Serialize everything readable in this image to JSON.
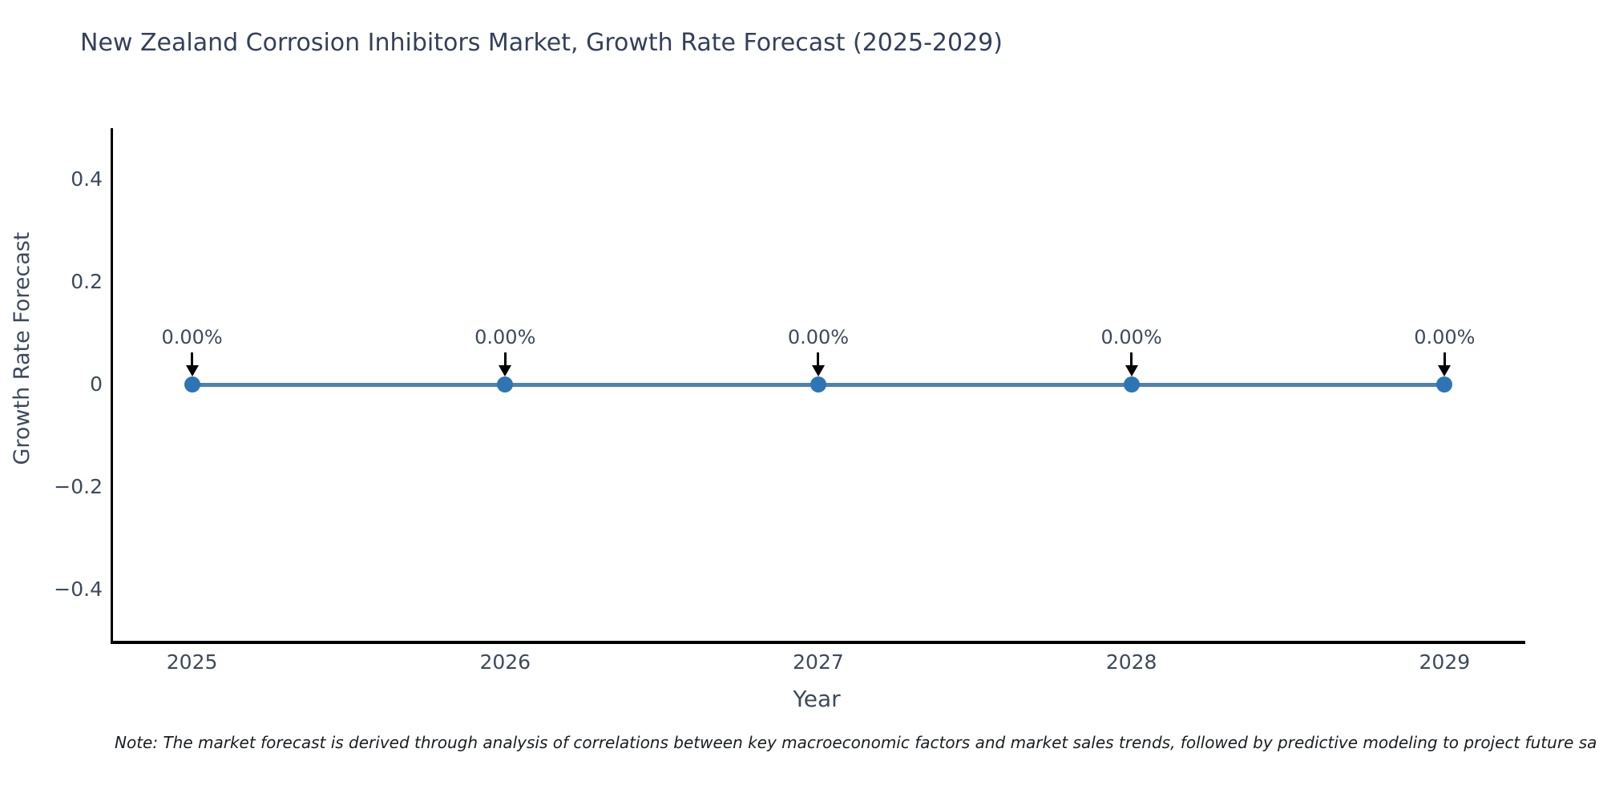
{
  "note": "Note: The market forecast is derived through analysis of correlations between key macroeconomic factors and market sales trends, followed by predictive modeling to project future sa",
  "colors": {
    "title": "#34405a",
    "text": "#3d4a5c",
    "note": "#1a1d21",
    "background": "#ffffff",
    "axis": "#000000"
  },
  "chart_data": {
    "type": "line",
    "title": "New Zealand Corrosion Inhibitors Market, Growth Rate Forecast (2025-2029)",
    "xlabel": "Year",
    "ylabel": "Growth Rate Forecast",
    "x": [
      2025,
      2026,
      2027,
      2028,
      2029
    ],
    "values": [
      0,
      0,
      0,
      0,
      0
    ],
    "point_labels": [
      "0.00%",
      "0.00%",
      "0.00%",
      "0.00%",
      "0.00%"
    ],
    "xtick_labels": [
      "2025",
      "2026",
      "2027",
      "2028",
      "2029"
    ],
    "yticks": [
      0.4,
      0.2,
      0,
      -0.2,
      -0.4
    ],
    "ytick_labels": [
      "0.4",
      "0.2",
      "0",
      "−0.2",
      "−0.4"
    ],
    "xlim": [
      2024.74,
      2029.25
    ],
    "ylim": [
      -0.5,
      0.5
    ],
    "grid": false,
    "legend": "none",
    "line_color": "#4d81af",
    "marker_color": "#2e75b5",
    "arrow_color": "#000000"
  }
}
